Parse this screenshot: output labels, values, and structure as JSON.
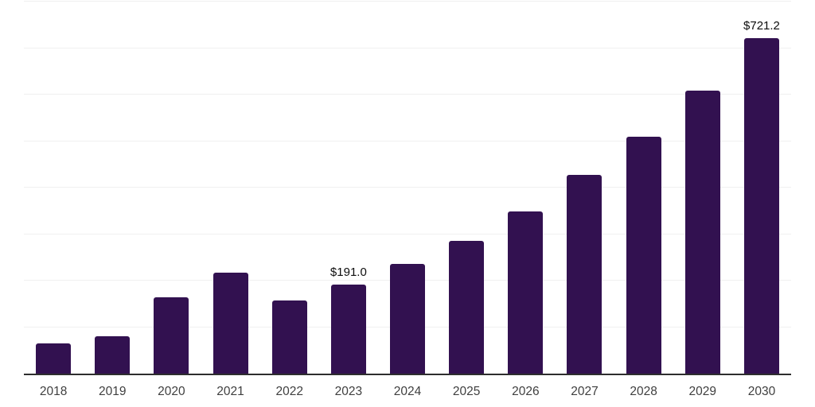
{
  "chart_data": {
    "type": "bar",
    "title": "",
    "xlabel": "",
    "ylabel": "",
    "categories": [
      "2018",
      "2019",
      "2020",
      "2021",
      "2022",
      "2023",
      "2024",
      "2025",
      "2026",
      "2027",
      "2028",
      "2029",
      "2030"
    ],
    "values": [
      64.6,
      79.9,
      164.5,
      216.7,
      157.3,
      191.0,
      235.5,
      285.1,
      349.4,
      427.1,
      510.2,
      608.9,
      721.2
    ],
    "annotations": [
      {
        "category": "2023",
        "text": "$191.0"
      },
      {
        "category": "2030",
        "text": "$721.2"
      }
    ],
    "ylim": [
      0,
      800
    ],
    "gridline_step": 100,
    "grid_visible": true,
    "y_tick_labels_visible": false,
    "legend": null,
    "colors": {
      "bar": "#321150",
      "grid": "#f0f0f0",
      "axis": "#2e2e2e",
      "tick_label": "#3f3f3f",
      "data_label": "#0d0d0d",
      "background": "#ffffff"
    }
  }
}
